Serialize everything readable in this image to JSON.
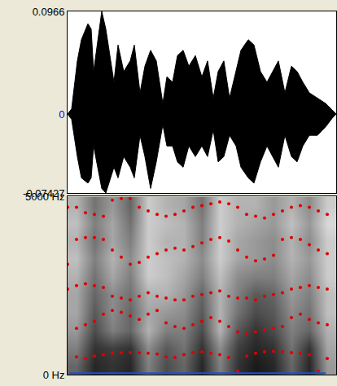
{
  "chart_data": [
    {
      "type": "area",
      "x": [
        0,
        5,
        12,
        17,
        25,
        29,
        32,
        42,
        47,
        57,
        62,
        69,
        77,
        82,
        89,
        95,
        102,
        109,
        117,
        122,
        129,
        135,
        142,
        149,
        157,
        165,
        172,
        179,
        185,
        192,
        199,
        207,
        213,
        222,
        229,
        237,
        245,
        252,
        259,
        267,
        275,
        282,
        289,
        297,
        307,
        317,
        325,
        330
      ],
      "series": [
        {
          "color": "#000000",
          "values": [
            0,
            0.005,
            0.05,
            0.07,
            0.085,
            0.08,
            0.04,
            0.0966,
            0.08,
            0.03,
            0.065,
            0.04,
            0.05,
            0.065,
            0.02,
            0.045,
            0.06,
            0.05,
            0.01,
            0.035,
            0.03,
            0.055,
            0.06,
            0.045,
            0.055,
            0.035,
            0.05,
            0.015,
            0.04,
            0.05,
            0.015,
            0.04,
            0.06,
            0.07,
            0.065,
            0.04,
            0.03,
            0.04,
            0.05,
            0.02,
            0.045,
            0.04,
            0.03,
            0.02,
            0.015,
            0.01,
            0.004,
            0
          ]
        },
        {
          "color": "#000000",
          "values": [
            0,
            -0.005,
            -0.04,
            -0.06,
            -0.065,
            -0.06,
            -0.03,
            -0.07,
            -0.07427,
            -0.05,
            -0.06,
            -0.04,
            -0.05,
            -0.06,
            -0.02,
            -0.04,
            -0.07,
            -0.045,
            -0.01,
            -0.03,
            -0.03,
            -0.045,
            -0.05,
            -0.03,
            -0.04,
            -0.03,
            -0.04,
            -0.015,
            -0.045,
            -0.04,
            -0.02,
            -0.03,
            -0.05,
            -0.06,
            -0.065,
            -0.045,
            -0.03,
            -0.04,
            -0.05,
            -0.02,
            -0.04,
            -0.045,
            -0.03,
            -0.02,
            -0.02,
            -0.012,
            -0.004,
            0
          ]
        }
      ],
      "xlim": [
        0,
        330
      ],
      "ylim": [
        -0.07427,
        0.0966
      ],
      "yticks": [
        -0.07427,
        0,
        0.0966
      ],
      "tick_labels": "y"
    },
    {
      "type": "heatmap",
      "x": [
        11,
        33,
        55,
        77,
        99,
        121,
        143,
        165,
        187,
        209,
        231,
        253,
        275,
        297,
        319
      ],
      "y": [
        250,
        750,
        1250,
        1750,
        2250,
        2750,
        3250,
        3750,
        4250,
        4750
      ],
      "cells": [
        [
          0.6,
          0.85,
          0.8,
          0.85,
          0.5,
          0.7,
          0.6,
          0.85,
          0.5,
          0.8,
          0.9,
          0.85,
          0.6,
          0.85,
          0.4
        ],
        [
          0.5,
          0.8,
          0.75,
          0.8,
          0.45,
          0.65,
          0.55,
          0.8,
          0.45,
          0.75,
          0.85,
          0.8,
          0.55,
          0.8,
          0.35
        ],
        [
          0.4,
          0.7,
          0.5,
          0.6,
          0.3,
          0.5,
          0.5,
          0.7,
          0.3,
          0.65,
          0.8,
          0.7,
          0.5,
          0.6,
          0.3
        ],
        [
          0.35,
          0.65,
          0.45,
          0.6,
          0.35,
          0.4,
          0.45,
          0.65,
          0.3,
          0.55,
          0.7,
          0.65,
          0.45,
          0.55,
          0.25
        ],
        [
          0.35,
          0.6,
          0.45,
          0.55,
          0.3,
          0.3,
          0.4,
          0.6,
          0.3,
          0.5,
          0.65,
          0.6,
          0.4,
          0.5,
          0.25
        ],
        [
          0.3,
          0.55,
          0.35,
          0.5,
          0.2,
          0.25,
          0.35,
          0.5,
          0.25,
          0.45,
          0.5,
          0.5,
          0.35,
          0.45,
          0.2
        ],
        [
          0.25,
          0.5,
          0.3,
          0.45,
          0.2,
          0.25,
          0.3,
          0.45,
          0.2,
          0.35,
          0.4,
          0.45,
          0.3,
          0.4,
          0.2
        ],
        [
          0.3,
          0.55,
          0.35,
          0.5,
          0.2,
          0.3,
          0.3,
          0.5,
          0.2,
          0.35,
          0.4,
          0.45,
          0.3,
          0.45,
          0.2
        ],
        [
          0.25,
          0.5,
          0.35,
          0.55,
          0.2,
          0.25,
          0.3,
          0.5,
          0.2,
          0.3,
          0.35,
          0.4,
          0.25,
          0.4,
          0.15
        ],
        [
          0.3,
          0.55,
          0.4,
          0.6,
          0.2,
          0.3,
          0.35,
          0.55,
          0.2,
          0.3,
          0.3,
          0.4,
          0.3,
          0.45,
          0.2
        ]
      ],
      "zlim": [
        0,
        1
      ],
      "xlim": [
        0,
        330
      ],
      "ylim": [
        0,
        5000
      ],
      "yticks": [
        {
          "value": 0,
          "label": "0 Hz"
        },
        {
          "value": 5000,
          "label": "5000 Hz"
        }
      ],
      "tick_labels": "y",
      "series": [
        {
          "type": "scatter",
          "marker": "circle",
          "color": "#e00000",
          "x": [
            0,
            11,
            22,
            33,
            44,
            55,
            66,
            77,
            88,
            99,
            110,
            121,
            132,
            143,
            154,
            165,
            176,
            187,
            198,
            209,
            220,
            231,
            242,
            253,
            264,
            275,
            286,
            297,
            308,
            319,
            330
          ],
          "values": [
            null,
            500,
            450,
            520,
            560,
            600,
            620,
            620,
            610,
            600,
            580,
            500,
            480,
            560,
            620,
            640,
            600,
            560,
            480,
            100,
            520,
            600,
            640,
            650,
            640,
            620,
            600,
            560,
            100,
            450,
            null
          ]
        },
        {
          "type": "scatter",
          "marker": "circle",
          "color": "#e00000",
          "x": [
            0,
            11,
            22,
            33,
            44,
            55,
            66,
            77,
            88,
            99,
            110,
            121,
            132,
            143,
            154,
            165,
            176,
            187,
            198,
            209,
            220,
            231,
            242,
            253,
            264,
            275,
            286,
            297,
            308,
            319,
            330
          ],
          "values": [
            null,
            1300,
            1400,
            1500,
            1700,
            1800,
            1750,
            1650,
            1550,
            1700,
            1800,
            1450,
            1350,
            1300,
            1400,
            1500,
            1600,
            1500,
            1350,
            1200,
            1150,
            1200,
            1250,
            1300,
            1350,
            1600,
            1700,
            1550,
            1450,
            1400,
            null
          ]
        },
        {
          "type": "scatter",
          "marker": "circle",
          "color": "#e00000",
          "x": [
            0,
            11,
            22,
            33,
            44,
            55,
            66,
            77,
            88,
            99,
            110,
            121,
            132,
            143,
            154,
            165,
            176,
            187,
            198,
            209,
            220,
            231,
            242,
            253,
            264,
            275,
            286,
            297,
            308,
            319,
            330
          ],
          "values": [
            2400,
            2500,
            2550,
            2500,
            2450,
            2200,
            2150,
            2100,
            2200,
            2300,
            2200,
            2150,
            2100,
            2100,
            2200,
            2250,
            2300,
            2350,
            2200,
            2150,
            2150,
            2100,
            2200,
            2250,
            2300,
            2400,
            2450,
            2500,
            2450,
            2400,
            null
          ]
        },
        {
          "type": "scatter",
          "marker": "circle",
          "color": "#e00000",
          "x": [
            0,
            11,
            22,
            33,
            44,
            55,
            66,
            77,
            88,
            99,
            110,
            121,
            132,
            143,
            154,
            165,
            176,
            187,
            198,
            209,
            220,
            231,
            242,
            253,
            264,
            275,
            286,
            297,
            308,
            319,
            330
          ],
          "values": [
            3100,
            3800,
            3850,
            3850,
            3800,
            3500,
            3300,
            3100,
            3150,
            3300,
            3400,
            3500,
            3550,
            3500,
            3600,
            3700,
            3800,
            3850,
            3750,
            3500,
            3300,
            3200,
            3250,
            3350,
            3800,
            3850,
            3800,
            3650,
            3500,
            3400,
            null
          ]
        },
        {
          "type": "scatter",
          "marker": "circle",
          "color": "#e00000",
          "x": [
            0,
            11,
            22,
            33,
            44,
            55,
            66,
            77,
            88,
            99,
            110,
            121,
            132,
            143,
            154,
            165,
            176,
            187,
            198,
            209,
            220,
            231,
            242,
            253,
            264,
            275,
            286,
            297,
            308,
            319,
            330
          ],
          "values": [
            4700,
            4700,
            4550,
            4500,
            4450,
            4900,
            4950,
            4950,
            4700,
            4600,
            4500,
            4450,
            4500,
            4600,
            4700,
            4750,
            4800,
            4850,
            4800,
            4700,
            4500,
            4450,
            4400,
            4500,
            4600,
            4700,
            4750,
            4700,
            4600,
            4500,
            null
          ]
        },
        {
          "type": "line",
          "color": "#1f4fd0",
          "x": [
            2,
            317
          ],
          "values": [
            40,
            40
          ]
        }
      ]
    }
  ]
}
